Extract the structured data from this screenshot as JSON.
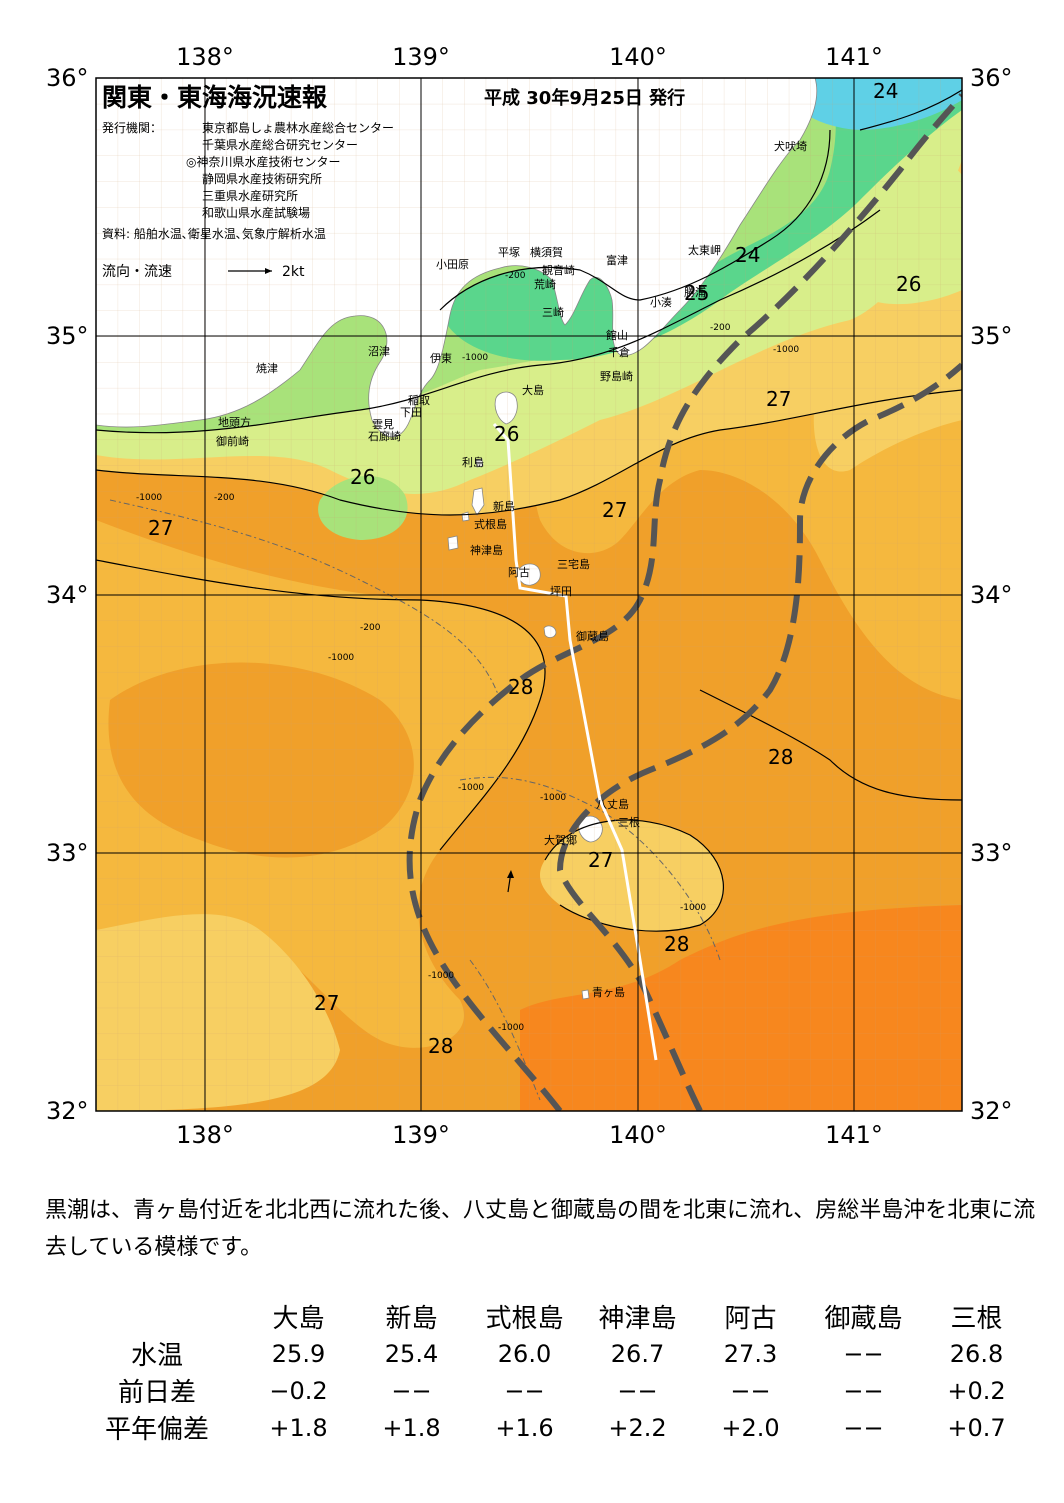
{
  "header": {
    "title": "関東・東海海況速報",
    "date": "平成 30年9月25日 発行",
    "issuer_label": "発行機関：",
    "issuers": [
      "東京都島しょ農林水産総合センター",
      "千葉県水産総合研究センター",
      "◎神奈川県水産技術センター",
      "静岡県水産技術研究所",
      "三重県水産研究所",
      "和歌山県水産試験場"
    ],
    "source": "資料: 船舶水温､衛星水温､気象庁解析水温",
    "current_legend": "流向・流速",
    "current_scale": "2kt"
  },
  "axes": {
    "lon_labels": [
      "138°",
      "139°",
      "140°",
      "141°"
    ],
    "lat_labels": [
      "36°",
      "35°",
      "34°",
      "33°",
      "32°"
    ]
  },
  "places": {
    "odawara": "小田原",
    "hiratsuka": "平塚",
    "yokosuka": "横須賀",
    "kannonzaki": "観音崎",
    "arasaki": "荒崎",
    "misaki": "三崎",
    "futtsu": "富津",
    "tateyama": "館山",
    "chikura": "千倉",
    "nojimazaki": "野島崎",
    "kominato": "小湊",
    "katsuura": "勝浦",
    "taitomisaki": "太東岬",
    "inubosaki": "犬吠埼",
    "numazu": "沼津",
    "ito": "伊東",
    "inatori": "稲取",
    "shimoda": "下田",
    "kumomi": "雲見",
    "irozaki": "石廊崎",
    "yaizu": "焼津",
    "jitokata": "地頭方",
    "omaezaki": "御前崎",
    "oshima": "大島",
    "toshima": "利島",
    "niijima": "新島",
    "shikinejima": "式根島",
    "kozushima": "神津島",
    "miyakejima": "三宅島",
    "ako": "阿古",
    "tsubota": "坪田",
    "mikurajima": "御蔵島",
    "hachijojima": "八丈島",
    "mitsune": "三根",
    "okago": "大賀郷",
    "aogashima": "青ヶ島"
  },
  "isotherms": [
    "24",
    "24",
    "25",
    "26",
    "26",
    "26",
    "27",
    "27",
    "27",
    "27",
    "27",
    "28",
    "28",
    "28",
    "28"
  ],
  "depths": [
    "-200",
    "-1000"
  ],
  "colors": {
    "t_le24": "#5fd0e6",
    "t_24_25": "#5ad68c",
    "t_25_26": "#a8e27a",
    "t_26_27": "#d8ee8a",
    "t_27_275": "#f7cf62",
    "t_275_28": "#f5b83e",
    "t_28_285": "#f0a02a",
    "t_ge285": "#f7871e",
    "land": "#ffffff",
    "kuroshio": "#555555"
  },
  "description": "黒潮は、青ヶ島付近を北北西に流れた後、八丈島と御蔵島の間を北東に流れ、房総半島沖を北東に流去している模様です。",
  "table": {
    "columns": [
      "大島",
      "新島",
      "式根島",
      "神津島",
      "阿古",
      "御蔵島",
      "三根"
    ],
    "rows": [
      {
        "label": "水温",
        "values": [
          "25.9",
          "25.4",
          "26.0",
          "26.7",
          "27.3",
          "−−",
          "26.8"
        ]
      },
      {
        "label": "前日差",
        "values": [
          "−0.2",
          "−−",
          "−−",
          "−−",
          "−−",
          "−−",
          "+0.2"
        ]
      },
      {
        "label": "平年偏差",
        "values": [
          "+1.8",
          "+1.8",
          "+1.6",
          "+2.2",
          "+2.0",
          "−−",
          "+0.7"
        ]
      }
    ]
  }
}
